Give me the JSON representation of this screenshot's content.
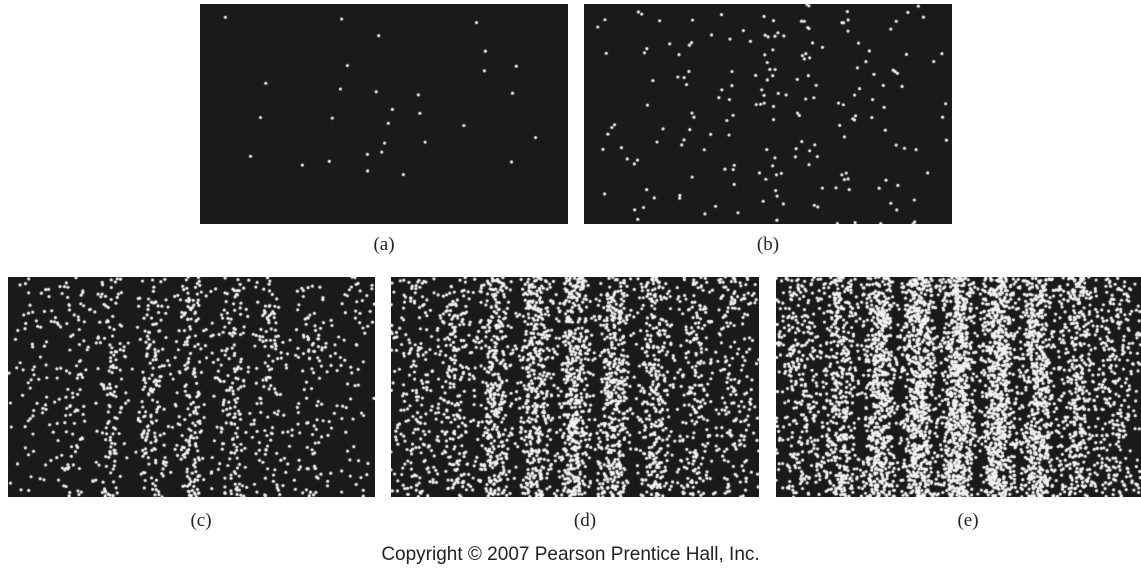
{
  "figure": {
    "panels": [
      {
        "id": "a",
        "label": "(a)"
      },
      {
        "id": "b",
        "label": "(b)"
      },
      {
        "id": "c",
        "label": "(c)"
      },
      {
        "id": "d",
        "label": "(d)"
      },
      {
        "id": "e",
        "label": "(e)"
      }
    ],
    "copyright": "Copyright © 2007 Pearson Prentice Hall, Inc.",
    "colors": {
      "panel_background": "#1a1a1a",
      "dot": "#f2f2f2"
    }
  }
}
